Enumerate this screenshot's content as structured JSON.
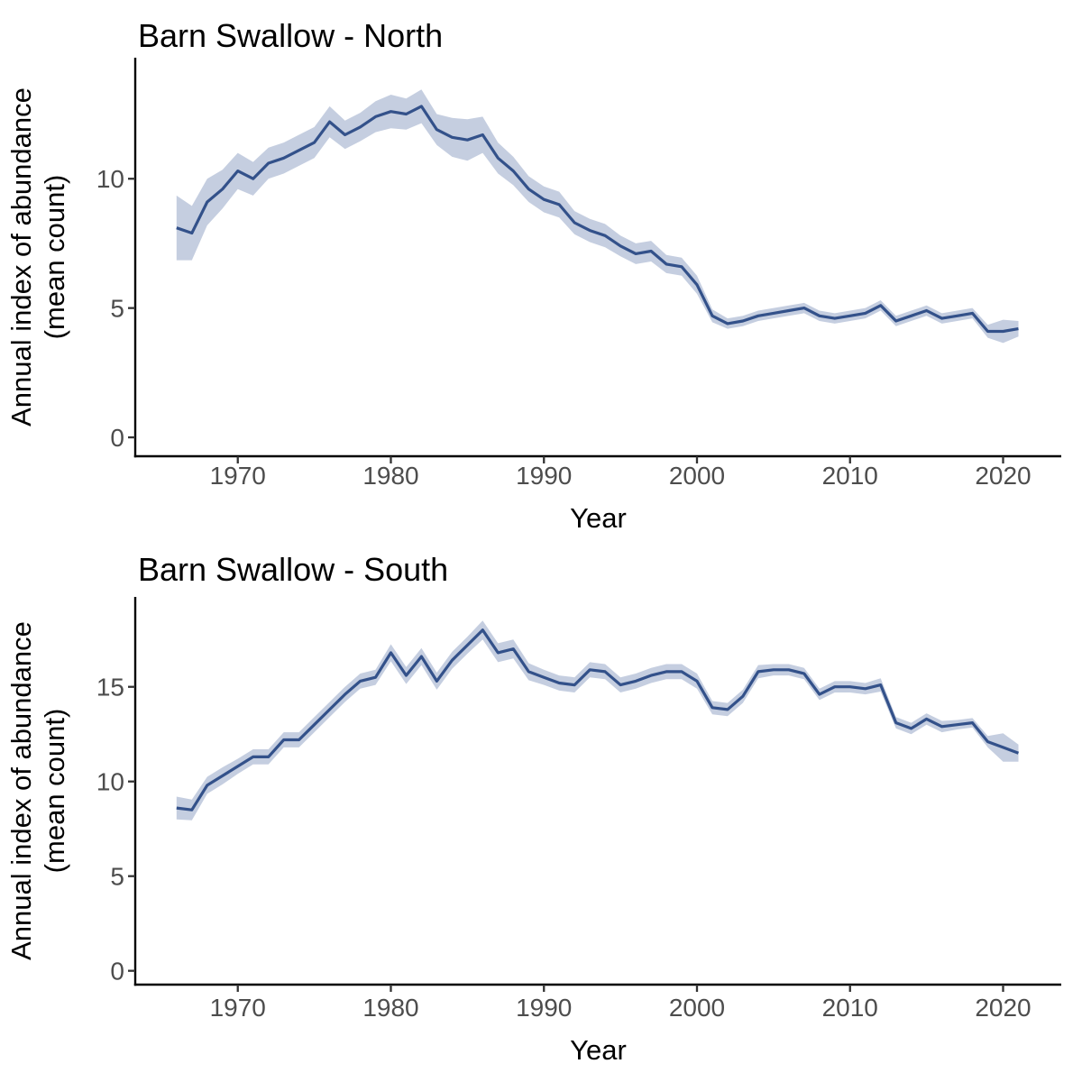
{
  "style": {
    "background": "#FFFFFF",
    "line_color": "#33518A",
    "ribbon_color": "#C5CEE0",
    "axis_line_color": "#000000",
    "tick_mark_color": "#333333",
    "tick_label_color": "#4D4D4D",
    "title_color": "#000000",
    "axis_title_color": "#000000"
  },
  "chart_data": [
    {
      "type": "line",
      "title": "Barn Swallow - North",
      "xlabel": "Year",
      "ylabel_line1": "Annual index of abundance",
      "ylabel_line2": "(mean count)",
      "grid": false,
      "legend_position": "none",
      "xlim": [
        1963.3,
        2023.8
      ],
      "ylim": [
        -0.73,
        14.68
      ],
      "xticks": [
        1970,
        1980,
        1990,
        2000,
        2010,
        2020
      ],
      "yticks": [
        0,
        5,
        10
      ],
      "x": [
        1966,
        1967,
        1968,
        1969,
        1970,
        1971,
        1972,
        1973,
        1974,
        1975,
        1976,
        1977,
        1978,
        1979,
        1980,
        1981,
        1982,
        1983,
        1984,
        1985,
        1986,
        1987,
        1988,
        1989,
        1990,
        1991,
        1992,
        1993,
        1994,
        1995,
        1996,
        1997,
        1998,
        1999,
        2000,
        2001,
        2002,
        2003,
        2004,
        2005,
        2006,
        2007,
        2008,
        2009,
        2010,
        2011,
        2012,
        2013,
        2014,
        2015,
        2016,
        2017,
        2018,
        2019,
        2020,
        2021
      ],
      "series": [
        {
          "name": "annual-index-mean-count",
          "values": [
            8.1,
            7.9,
            9.1,
            9.6,
            10.3,
            10.0,
            10.6,
            10.8,
            11.1,
            11.4,
            12.2,
            11.7,
            12.0,
            12.4,
            12.6,
            12.5,
            12.8,
            11.9,
            11.6,
            11.5,
            11.7,
            10.8,
            10.3,
            9.6,
            9.2,
            9.0,
            8.3,
            8.0,
            7.8,
            7.4,
            7.1,
            7.2,
            6.7,
            6.6,
            5.9,
            4.7,
            4.4,
            4.5,
            4.7,
            4.8,
            4.9,
            5.0,
            4.7,
            4.6,
            4.7,
            4.8,
            5.1,
            4.5,
            4.7,
            4.9,
            4.6,
            4.7,
            4.8,
            4.1,
            4.1,
            4.2
          ]
        }
      ],
      "ribbon": {
        "name": "confidence-band",
        "upper": [
          9.35,
          8.95,
          10.0,
          10.35,
          11.0,
          10.65,
          11.2,
          11.4,
          11.7,
          12.0,
          12.8,
          12.25,
          12.55,
          13.0,
          13.25,
          13.1,
          13.45,
          12.5,
          12.35,
          12.3,
          12.4,
          11.4,
          10.85,
          10.1,
          9.7,
          9.5,
          8.75,
          8.45,
          8.25,
          7.8,
          7.5,
          7.6,
          7.05,
          6.95,
          6.25,
          4.95,
          4.6,
          4.7,
          4.9,
          5.0,
          5.1,
          5.2,
          4.9,
          4.8,
          4.9,
          5.0,
          5.3,
          4.7,
          4.9,
          5.1,
          4.8,
          4.9,
          5.0,
          4.35,
          4.55,
          4.5
        ],
        "lower": [
          6.85,
          6.85,
          8.2,
          8.85,
          9.6,
          9.35,
          10.0,
          10.2,
          10.5,
          10.8,
          11.6,
          11.15,
          11.45,
          11.8,
          11.95,
          11.9,
          12.15,
          11.3,
          10.85,
          10.7,
          11.0,
          10.2,
          9.75,
          9.1,
          8.7,
          8.5,
          7.85,
          7.55,
          7.35,
          7.0,
          6.7,
          6.8,
          6.35,
          6.25,
          5.55,
          4.45,
          4.2,
          4.3,
          4.5,
          4.6,
          4.7,
          4.8,
          4.5,
          4.4,
          4.5,
          4.6,
          4.9,
          4.3,
          4.5,
          4.7,
          4.4,
          4.5,
          4.6,
          3.85,
          3.65,
          3.9
        ]
      }
    },
    {
      "type": "line",
      "title": "Barn Swallow - South",
      "xlabel": "Year",
      "ylabel_line1": "Annual index of abundance",
      "ylabel_line2": "(mean count)",
      "grid": false,
      "legend_position": "none",
      "xlim": [
        1963.3,
        2023.8
      ],
      "ylim": [
        -0.73,
        19.75
      ],
      "xticks": [
        1970,
        1980,
        1990,
        2000,
        2010,
        2020
      ],
      "yticks": [
        0,
        5,
        10,
        15
      ],
      "x": [
        1966,
        1967,
        1968,
        1969,
        1970,
        1971,
        1972,
        1973,
        1974,
        1975,
        1976,
        1977,
        1978,
        1979,
        1980,
        1981,
        1982,
        1983,
        1984,
        1985,
        1986,
        1987,
        1988,
        1989,
        1990,
        1991,
        1992,
        1993,
        1994,
        1995,
        1996,
        1997,
        1998,
        1999,
        2000,
        2001,
        2002,
        2003,
        2004,
        2005,
        2006,
        2007,
        2008,
        2009,
        2010,
        2011,
        2012,
        2013,
        2014,
        2015,
        2016,
        2017,
        2018,
        2019,
        2020,
        2021
      ],
      "series": [
        {
          "name": "annual-index-mean-count",
          "values": [
            8.6,
            8.5,
            9.8,
            10.3,
            10.8,
            11.3,
            11.3,
            12.2,
            12.2,
            13.0,
            13.8,
            14.6,
            15.3,
            15.5,
            16.8,
            15.6,
            16.6,
            15.3,
            16.4,
            17.2,
            18.0,
            16.8,
            17.0,
            15.8,
            15.5,
            15.2,
            15.1,
            15.9,
            15.8,
            15.1,
            15.3,
            15.6,
            15.8,
            15.8,
            15.3,
            13.9,
            13.8,
            14.5,
            15.8,
            15.9,
            15.9,
            15.7,
            14.6,
            15.0,
            15.0,
            14.9,
            15.1,
            13.1,
            12.8,
            13.3,
            12.9,
            13.0,
            13.1,
            12.1,
            11.8,
            11.5
          ]
        }
      ],
      "ribbon": {
        "name": "confidence-band",
        "upper": [
          9.2,
          9.05,
          10.25,
          10.75,
          11.2,
          11.7,
          11.7,
          12.6,
          12.6,
          13.4,
          14.2,
          15.0,
          15.7,
          15.9,
          17.25,
          16.05,
          17.05,
          15.75,
          16.85,
          17.65,
          18.5,
          17.3,
          17.5,
          16.25,
          15.9,
          15.6,
          15.5,
          16.3,
          16.2,
          15.5,
          15.7,
          16.0,
          16.2,
          16.2,
          15.7,
          14.25,
          14.15,
          14.85,
          16.15,
          16.2,
          16.2,
          16.0,
          14.9,
          15.3,
          15.3,
          15.2,
          15.45,
          13.4,
          13.1,
          13.6,
          13.2,
          13.25,
          13.35,
          12.4,
          12.55,
          11.95
        ],
        "lower": [
          8.0,
          7.95,
          9.35,
          9.85,
          10.4,
          10.9,
          10.9,
          11.8,
          11.8,
          12.6,
          13.4,
          14.2,
          14.9,
          15.1,
          16.35,
          15.15,
          16.15,
          14.85,
          15.95,
          16.75,
          17.5,
          16.3,
          16.5,
          15.35,
          15.1,
          14.8,
          14.7,
          15.5,
          15.4,
          14.7,
          14.9,
          15.2,
          15.4,
          15.4,
          14.9,
          13.55,
          13.45,
          14.15,
          15.45,
          15.6,
          15.6,
          15.4,
          14.3,
          14.7,
          14.7,
          14.6,
          14.75,
          12.8,
          12.5,
          13.0,
          12.6,
          12.75,
          12.85,
          11.8,
          11.05,
          11.05
        ]
      }
    }
  ]
}
